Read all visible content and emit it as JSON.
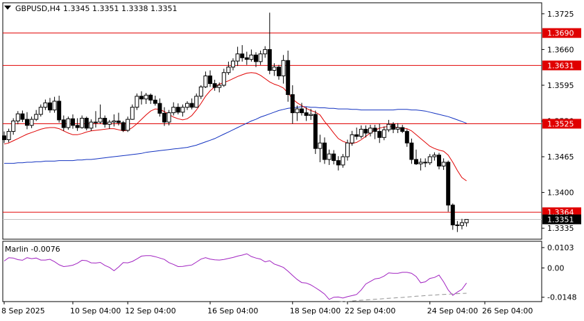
{
  "header": {
    "symbol": "GBPUSD,H4",
    "ohlc": "1.3345 1.3351 1.3338 1.3351"
  },
  "chart_data": [
    {
      "type": "candlestick",
      "symbol": "GBPUSD",
      "timeframe": "H4",
      "y_axis_ticks": [
        "1.3725",
        "1.3660",
        "1.3595",
        "1.3530",
        "1.3465",
        "1.3400",
        "1.3335"
      ],
      "ylim": [
        1.3315,
        1.3745
      ],
      "x_axis_ticks": [
        "8 Sep 2025",
        "10 Sep 04:00",
        "12 Sep 04:00",
        "16 Sep 04:00",
        "18 Sep 04:00",
        "22 Sep 04:00",
        "24 Sep 04:00",
        "26 Sep 04:00"
      ],
      "levels": [
        {
          "value": 1.369,
          "label": "1.3690",
          "color": "#e00000"
        },
        {
          "value": 1.3631,
          "label": "1.3631",
          "color": "#e00000"
        },
        {
          "value": 1.3525,
          "label": "1.3525",
          "color": "#e00000"
        },
        {
          "value": 1.3364,
          "label": "1.3364",
          "color": "#e00000"
        }
      ],
      "current_price": {
        "value": 1.3351,
        "label": "1.3351"
      },
      "candles": [
        [
          1.3503,
          1.3511,
          1.349,
          1.3496
        ],
        [
          1.3496,
          1.3516,
          1.3491,
          1.3511
        ],
        [
          1.3511,
          1.3535,
          1.3505,
          1.353
        ],
        [
          1.353,
          1.3548,
          1.3524,
          1.3543
        ],
        [
          1.3543,
          1.3549,
          1.3528,
          1.3533
        ],
        [
          1.3533,
          1.3546,
          1.3515,
          1.3522
        ],
        [
          1.3522,
          1.3538,
          1.3517,
          1.3533
        ],
        [
          1.3533,
          1.355,
          1.353,
          1.3542
        ],
        [
          1.3542,
          1.356,
          1.3538,
          1.3555
        ],
        [
          1.3555,
          1.3569,
          1.355,
          1.3563
        ],
        [
          1.3563,
          1.3572,
          1.3545,
          1.355
        ],
        [
          1.355,
          1.3574,
          1.3545,
          1.3566
        ],
        [
          1.3566,
          1.3576,
          1.3527,
          1.3532
        ],
        [
          1.3532,
          1.354,
          1.3512,
          1.3518
        ],
        [
          1.3518,
          1.3538,
          1.3514,
          1.3534
        ],
        [
          1.3534,
          1.3542,
          1.3516,
          1.3522
        ],
        [
          1.3522,
          1.3535,
          1.3512,
          1.3518
        ],
        [
          1.3518,
          1.354,
          1.3516,
          1.3535
        ],
        [
          1.3535,
          1.3538,
          1.3513,
          1.3517
        ],
        [
          1.3517,
          1.3533,
          1.3512,
          1.3528
        ],
        [
          1.3528,
          1.3548,
          1.3518,
          1.3528
        ],
        [
          1.3528,
          1.356,
          1.3525,
          1.3535
        ],
        [
          1.3535,
          1.354,
          1.3518,
          1.3524
        ],
        [
          1.3524,
          1.3532,
          1.3516,
          1.3528
        ],
        [
          1.3528,
          1.3542,
          1.352,
          1.353
        ],
        [
          1.353,
          1.3545,
          1.3522,
          1.3527
        ],
        [
          1.3527,
          1.353,
          1.351,
          1.3513
        ],
        [
          1.3513,
          1.3538,
          1.351,
          1.3533
        ],
        [
          1.3533,
          1.356,
          1.3532,
          1.3555
        ],
        [
          1.3555,
          1.358,
          1.355,
          1.3575
        ],
        [
          1.3575,
          1.3584,
          1.356,
          1.357
        ],
        [
          1.357,
          1.3581,
          1.3561,
          1.3577
        ],
        [
          1.3577,
          1.358,
          1.3561,
          1.3568
        ],
        [
          1.3568,
          1.3576,
          1.3558,
          1.3562
        ],
        [
          1.3562,
          1.3571,
          1.3538,
          1.3544
        ],
        [
          1.3544,
          1.3555,
          1.3521,
          1.3528
        ],
        [
          1.3528,
          1.355,
          1.3522,
          1.3545
        ],
        [
          1.3545,
          1.3564,
          1.354,
          1.3555
        ],
        [
          1.3555,
          1.3562,
          1.3542,
          1.3546
        ],
        [
          1.3546,
          1.356,
          1.3538,
          1.3555
        ],
        [
          1.3555,
          1.3566,
          1.355,
          1.3562
        ],
        [
          1.3562,
          1.3571,
          1.3551,
          1.3555
        ],
        [
          1.3555,
          1.358,
          1.3554,
          1.3575
        ],
        [
          1.3575,
          1.3595,
          1.357,
          1.3592
        ],
        [
          1.3592,
          1.362,
          1.359,
          1.3612
        ],
        [
          1.3612,
          1.3622,
          1.3592,
          1.3598
        ],
        [
          1.3598,
          1.3605,
          1.3585,
          1.3591
        ],
        [
          1.3591,
          1.36,
          1.3582,
          1.3595
        ],
        [
          1.3595,
          1.3625,
          1.3592,
          1.3618
        ],
        [
          1.3618,
          1.3638,
          1.3614,
          1.3628
        ],
        [
          1.3628,
          1.3644,
          1.3622,
          1.3639
        ],
        [
          1.3639,
          1.3665,
          1.363,
          1.3652
        ],
        [
          1.3652,
          1.3668,
          1.3638,
          1.3645
        ],
        [
          1.3645,
          1.3656,
          1.3632,
          1.3642
        ],
        [
          1.3642,
          1.366,
          1.3638,
          1.365
        ],
        [
          1.365,
          1.3655,
          1.3628,
          1.3638
        ],
        [
          1.3638,
          1.3658,
          1.3632,
          1.3652
        ],
        [
          1.3652,
          1.3666,
          1.3645,
          1.366
        ],
        [
          1.366,
          1.3727,
          1.3615,
          1.3622
        ],
        [
          1.3622,
          1.3635,
          1.3612,
          1.3628
        ],
        [
          1.3628,
          1.3632,
          1.3605,
          1.3612
        ],
        [
          1.3612,
          1.365,
          1.3598,
          1.364
        ],
        [
          1.364,
          1.3658,
          1.3565,
          1.3578
        ],
        [
          1.3578,
          1.3595,
          1.3525,
          1.3545
        ],
        [
          1.3545,
          1.3558,
          1.353,
          1.3552
        ],
        [
          1.3552,
          1.3563,
          1.354,
          1.3545
        ],
        [
          1.3545,
          1.3555,
          1.353,
          1.354
        ],
        [
          1.354,
          1.3552,
          1.3532,
          1.3542
        ],
        [
          1.3542,
          1.3549,
          1.347,
          1.348
        ],
        [
          1.348,
          1.3505,
          1.3455,
          1.349
        ],
        [
          1.349,
          1.35,
          1.3452,
          1.346
        ],
        [
          1.346,
          1.3478,
          1.345,
          1.347
        ],
        [
          1.347,
          1.3477,
          1.3451,
          1.3458
        ],
        [
          1.3458,
          1.3466,
          1.344,
          1.345
        ],
        [
          1.345,
          1.347,
          1.3445,
          1.3465
        ],
        [
          1.3465,
          1.3496,
          1.3458,
          1.349
        ],
        [
          1.349,
          1.3512,
          1.3485,
          1.3505
        ],
        [
          1.3505,
          1.3518,
          1.3496,
          1.3502
        ],
        [
          1.3502,
          1.3522,
          1.3498,
          1.3515
        ],
        [
          1.3515,
          1.3522,
          1.35,
          1.3508
        ],
        [
          1.3508,
          1.3523,
          1.3502,
          1.3517
        ],
        [
          1.3517,
          1.3523,
          1.3497,
          1.3511
        ],
        [
          1.3511,
          1.3525,
          1.349,
          1.35
        ],
        [
          1.35,
          1.352,
          1.3495,
          1.3514
        ],
        [
          1.3514,
          1.3532,
          1.351,
          1.3524
        ],
        [
          1.3524,
          1.3528,
          1.3508,
          1.3515
        ],
        [
          1.3515,
          1.3526,
          1.3508,
          1.3518
        ],
        [
          1.3518,
          1.3523,
          1.3508,
          1.3511
        ],
        [
          1.3511,
          1.3515,
          1.3483,
          1.349
        ],
        [
          1.349,
          1.3498,
          1.3452,
          1.346
        ],
        [
          1.346,
          1.3478,
          1.345,
          1.3452
        ],
        [
          1.3452,
          1.3462,
          1.344,
          1.3455
        ],
        [
          1.3455,
          1.3462,
          1.3446,
          1.3454
        ],
        [
          1.3454,
          1.347,
          1.345,
          1.3465
        ],
        [
          1.3465,
          1.3473,
          1.3458,
          1.3468
        ],
        [
          1.3468,
          1.3472,
          1.3442,
          1.3448
        ],
        [
          1.3448,
          1.3462,
          1.3441,
          1.3455
        ],
        [
          1.3455,
          1.3458,
          1.3365,
          1.3377
        ],
        [
          1.3377,
          1.338,
          1.3332,
          1.3341
        ],
        [
          1.3341,
          1.3348,
          1.3328,
          1.334
        ],
        [
          1.334,
          1.3352,
          1.3333,
          1.3345
        ],
        [
          1.3345,
          1.3351,
          1.3338,
          1.3351
        ]
      ],
      "ma_fast": {
        "color": "#e00000",
        "values": [
          1.3488,
          1.349,
          1.3494,
          1.3498,
          1.3502,
          1.3506,
          1.3509,
          1.3512,
          1.3515,
          1.3517,
          1.3518,
          1.3518,
          1.3516,
          1.3512,
          1.3508,
          1.3505,
          1.3505,
          1.3507,
          1.351,
          1.3512,
          1.3513,
          1.3514,
          1.3515,
          1.3516,
          1.3516,
          1.3514,
          1.3512,
          1.3513,
          1.3518,
          1.3525,
          1.3533,
          1.3541,
          1.3548,
          1.3552,
          1.3551,
          1.3547,
          1.3542,
          1.3537,
          1.3534,
          1.3532,
          1.3534,
          1.354,
          1.355,
          1.3562,
          1.3575,
          1.3585,
          1.3592,
          1.3597,
          1.36,
          1.3603,
          1.3607,
          1.3611,
          1.3614,
          1.3617,
          1.3618,
          1.3617,
          1.3613,
          1.3607,
          1.3601,
          1.3597,
          1.3594,
          1.359,
          1.3581,
          1.357,
          1.3563,
          1.3558,
          1.3553,
          1.3549,
          1.3546,
          1.3541,
          1.3529,
          1.3519,
          1.3508,
          1.3498,
          1.3493,
          1.349,
          1.3489,
          1.3491,
          1.3496,
          1.3502,
          1.3508,
          1.3513,
          1.3517,
          1.3519,
          1.352,
          1.352,
          1.3518,
          1.3517,
          1.3516,
          1.3512,
          1.3505,
          1.3498,
          1.3491,
          1.3484,
          1.348,
          1.3477,
          1.3475,
          1.3468,
          1.3455,
          1.344,
          1.3427,
          1.3421
        ]
      },
      "ma_slow": {
        "color": "#1030c0",
        "values": [
          1.3453,
          1.3453,
          1.3453,
          1.3454,
          1.3454,
          1.3455,
          1.3455,
          1.3456,
          1.3456,
          1.3457,
          1.3457,
          1.3457,
          1.3458,
          1.3458,
          1.3458,
          1.3458,
          1.3459,
          1.3459,
          1.346,
          1.346,
          1.3461,
          1.3462,
          1.3463,
          1.3464,
          1.3465,
          1.3466,
          1.3467,
          1.3468,
          1.3469,
          1.347,
          1.3471,
          1.3473,
          1.3474,
          1.3475,
          1.3476,
          1.3477,
          1.3478,
          1.3479,
          1.348,
          1.3481,
          1.3482,
          1.3484,
          1.3486,
          1.3489,
          1.3492,
          1.3495,
          1.3498,
          1.3502,
          1.3506,
          1.351,
          1.3514,
          1.3518,
          1.3522,
          1.3526,
          1.353,
          1.3533,
          1.3537,
          1.354,
          1.3543,
          1.3546,
          1.3549,
          1.3551,
          1.3553,
          1.3554,
          1.3555,
          1.3556,
          1.3556,
          1.3555,
          1.3555,
          1.3554,
          1.3554,
          1.3553,
          1.3553,
          1.3552,
          1.3552,
          1.3552,
          1.3551,
          1.3551,
          1.355,
          1.355,
          1.355,
          1.355,
          1.355,
          1.355,
          1.355,
          1.355,
          1.3551,
          1.3551,
          1.3551,
          1.355,
          1.355,
          1.3549,
          1.3548,
          1.3546,
          1.3544,
          1.3542,
          1.354,
          1.3538,
          1.3535,
          1.3532,
          1.3529,
          1.3526
        ]
      }
    },
    {
      "type": "line",
      "title": "Marlin -0.0076",
      "y_axis_ticks": [
        "0.0103",
        "0.00",
        "-0.0148"
      ],
      "ylim": [
        -0.017,
        0.0135
      ],
      "series": [
        {
          "name": "Marlin",
          "color": "#a020c0",
          "values": [
            0.0035,
            0.0052,
            0.005,
            0.0042,
            0.0039,
            0.0052,
            0.0047,
            0.005,
            0.004,
            0.004,
            0.0044,
            0.0032,
            0.0016,
            0.0007,
            0.001,
            0.0014,
            0.0024,
            0.0039,
            0.0037,
            0.0026,
            0.0025,
            0.0028,
            0.0013,
            0.0003,
            -0.0014,
            0.0005,
            0.0027,
            0.0026,
            0.0033,
            0.0046,
            0.006,
            0.0062,
            0.0062,
            0.0057,
            0.005,
            0.0043,
            0.0027,
            0.0018,
            0.0007,
            0.0008,
            0.0012,
            0.0015,
            0.003,
            0.0045,
            0.0052,
            0.0045,
            0.0041,
            0.004,
            0.0043,
            0.0048,
            0.0053,
            0.006,
            0.0065,
            0.0072,
            0.0058,
            0.005,
            0.0045,
            0.0031,
            0.0037,
            0.002,
            0.0012,
            0.0003,
            -0.0016,
            -0.0038,
            -0.0058,
            -0.0074,
            -0.0076,
            -0.0086,
            -0.01,
            -0.0115,
            -0.0132,
            -0.0159,
            -0.0148,
            -0.0147,
            -0.0152,
            -0.0145,
            -0.014,
            -0.0134,
            -0.0111,
            -0.0081,
            -0.0068,
            -0.0055,
            -0.0052,
            -0.0041,
            -0.0025,
            -0.0027,
            -0.0027,
            -0.0022,
            -0.0022,
            -0.0027,
            -0.0043,
            -0.0075,
            -0.007,
            -0.0053,
            -0.0048,
            -0.0036,
            -0.007,
            -0.0111,
            -0.0138,
            -0.0122,
            -0.0108,
            -0.0076
          ]
        },
        {
          "name": "",
          "color": "#909090",
          "dash": true,
          "values": [
            null,
            null,
            null,
            null,
            null,
            null,
            null,
            null,
            null,
            null,
            null,
            null,
            null,
            null,
            null,
            null,
            null,
            null,
            null,
            null,
            null,
            null,
            null,
            null,
            null,
            null,
            null,
            null,
            null,
            null,
            null,
            null,
            null,
            null,
            null,
            null,
            null,
            null,
            null,
            null,
            null,
            null,
            null,
            null,
            null,
            null,
            null,
            null,
            null,
            null,
            null,
            null,
            null,
            null,
            null,
            null,
            null,
            null,
            null,
            null,
            null,
            null,
            null,
            null,
            null,
            null,
            null,
            null,
            null,
            null,
            null,
            null,
            null,
            -0.0172,
            -0.017,
            -0.0169,
            -0.0167,
            -0.0165,
            -0.0163,
            -0.0162,
            -0.016,
            -0.0158,
            -0.0157,
            -0.0155,
            -0.0153,
            -0.0152,
            -0.015,
            -0.0149,
            -0.0147,
            -0.0145,
            -0.0143,
            -0.0142,
            -0.014,
            -0.0138,
            -0.0137,
            -0.0135,
            -0.0134,
            -0.0133,
            -0.0131,
            -0.013,
            -0.0129,
            -0.0128
          ]
        }
      ]
    }
  ]
}
